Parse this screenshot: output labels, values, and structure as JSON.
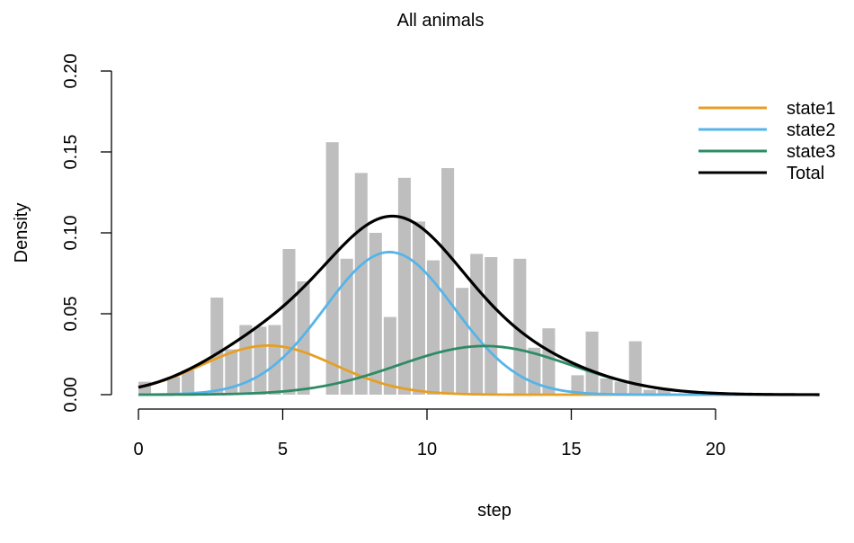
{
  "chart_data": {
    "type": "histogram",
    "title": "All animals",
    "xlabel": "step",
    "ylabel": "Density",
    "xlim": [
      0,
      24
    ],
    "ylim": [
      0,
      0.2
    ],
    "x_ticks": [
      0,
      5,
      10,
      15,
      20
    ],
    "x_tick_labels": [
      "0",
      "5",
      "10",
      "15",
      "20"
    ],
    "y_ticks": [
      0,
      0.05,
      0.1,
      0.15,
      0.2
    ],
    "y_tick_labels": [
      "0.00",
      "0.05",
      "0.10",
      "0.15",
      "0.20"
    ],
    "grid": false,
    "legend_position": "top-right",
    "histogram": {
      "color": "#bebebe",
      "bin_width": 0.5,
      "bin_starts": [
        0,
        0.5,
        1,
        1.5,
        2,
        2.5,
        3,
        3.5,
        4,
        4.5,
        5,
        5.5,
        6,
        6.5,
        7,
        7.5,
        8,
        8.5,
        9,
        9.5,
        10,
        10.5,
        11,
        11.5,
        12,
        12.5,
        13,
        13.5,
        14,
        14.5,
        15,
        15.5,
        16,
        16.5,
        17,
        17.5,
        18,
        18.5,
        19,
        19.5,
        20,
        20.5,
        21,
        21.5,
        22,
        22.5,
        23
      ],
      "densities": [
        0.008,
        0,
        0.011,
        0.015,
        0,
        0.06,
        0.028,
        0.043,
        0.042,
        0.043,
        0.09,
        0.07,
        0,
        0.156,
        0.084,
        0.137,
        0.1,
        0.048,
        0.134,
        0.107,
        0.083,
        0.14,
        0.066,
        0.087,
        0.085,
        0,
        0.084,
        0.029,
        0.041,
        0,
        0.012,
        0.039,
        0.01,
        0.008,
        0.033,
        0.003,
        0.003,
        0,
        0,
        0,
        0,
        0,
        0,
        0,
        0,
        0,
        0
      ]
    },
    "series": [
      {
        "name": "state1",
        "color": "#E69F25",
        "component": {
          "mean": 4.5,
          "sd": 2.3,
          "weight": 0.175
        }
      },
      {
        "name": "state2",
        "color": "#56B4E9",
        "component": {
          "mean": 8.7,
          "sd": 2.25,
          "weight": 0.497
        }
      },
      {
        "name": "state3",
        "color": "#2E8B66",
        "component": {
          "mean": 12,
          "sd": 3.0,
          "weight": 0.226
        }
      },
      {
        "name": "Total",
        "color": "#000000",
        "component": "sum"
      }
    ]
  }
}
